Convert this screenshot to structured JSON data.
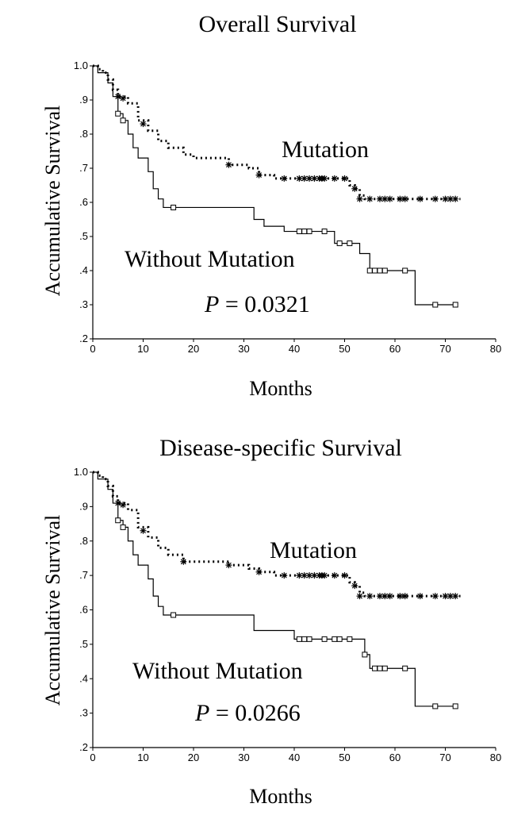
{
  "chart_data": [
    {
      "type": "line",
      "title": "Overall Survival",
      "xlabel": "Months",
      "ylabel": "Accumulative Survival",
      "xlim": [
        0,
        80
      ],
      "ylim": [
        0.2,
        1.0
      ],
      "xticks": [
        "0",
        "10",
        "20",
        "30",
        "40",
        "50",
        "60",
        "70",
        "80"
      ],
      "yticks": [
        "1.0",
        ".9",
        ".8",
        ".7",
        ".6",
        ".5",
        ".4",
        ".3",
        ".2"
      ],
      "p_value_label": "P",
      "p_value_text": "= 0.0321",
      "series": [
        {
          "name": "Mutation",
          "style": "dotted",
          "marker": "star",
          "steps": [
            [
              0,
              1.0
            ],
            [
              1,
              0.99
            ],
            [
              2,
              0.98
            ],
            [
              3,
              0.96
            ],
            [
              4,
              0.93
            ],
            [
              5,
              0.91
            ],
            [
              7,
              0.89
            ],
            [
              9,
              0.84
            ],
            [
              11,
              0.81
            ],
            [
              13,
              0.78
            ],
            [
              15,
              0.76
            ],
            [
              18,
              0.74
            ],
            [
              20,
              0.73
            ],
            [
              27,
              0.71
            ],
            [
              31,
              0.7
            ],
            [
              33,
              0.68
            ],
            [
              36,
              0.67
            ],
            [
              51,
              0.65
            ],
            [
              52,
              0.64
            ],
            [
              53,
              0.62
            ],
            [
              54,
              0.61
            ]
          ],
          "end": 73,
          "censored": [
            [
              5,
              0.91
            ],
            [
              6,
              0.905
            ],
            [
              10,
              0.83
            ],
            [
              27,
              0.71
            ],
            [
              33,
              0.68
            ],
            [
              38,
              0.67
            ],
            [
              41,
              0.67
            ],
            [
              42,
              0.67
            ],
            [
              43,
              0.67
            ],
            [
              44,
              0.67
            ],
            [
              45,
              0.67
            ],
            [
              45.5,
              0.67
            ],
            [
              46,
              0.67
            ],
            [
              48,
              0.67
            ],
            [
              50,
              0.67
            ],
            [
              52,
              0.64
            ],
            [
              53,
              0.61
            ],
            [
              55,
              0.61
            ],
            [
              57,
              0.61
            ],
            [
              58,
              0.61
            ],
            [
              59,
              0.61
            ],
            [
              61,
              0.61
            ],
            [
              62,
              0.61
            ],
            [
              65,
              0.61
            ],
            [
              68,
              0.61
            ],
            [
              70,
              0.61
            ],
            [
              71,
              0.61
            ],
            [
              72,
              0.61
            ]
          ]
        },
        {
          "name": "Without Mutation",
          "style": "solid",
          "marker": "square",
          "steps": [
            [
              0,
              1.0
            ],
            [
              1,
              0.98
            ],
            [
              3,
              0.95
            ],
            [
              4,
              0.91
            ],
            [
              5,
              0.86
            ],
            [
              6,
              0.84
            ],
            [
              7,
              0.8
            ],
            [
              8,
              0.76
            ],
            [
              9,
              0.73
            ],
            [
              11,
              0.69
            ],
            [
              12,
              0.64
            ],
            [
              13,
              0.61
            ],
            [
              14,
              0.585
            ],
            [
              32,
              0.55
            ],
            [
              34,
              0.53
            ],
            [
              38,
              0.515
            ],
            [
              48,
              0.48
            ],
            [
              53,
              0.45
            ],
            [
              55,
              0.4
            ],
            [
              64,
              0.3
            ]
          ],
          "end": 72,
          "censored": [
            [
              5,
              0.86
            ],
            [
              6,
              0.84
            ],
            [
              16,
              0.585
            ],
            [
              41,
              0.515
            ],
            [
              42,
              0.515
            ],
            [
              43,
              0.515
            ],
            [
              46,
              0.515
            ],
            [
              49,
              0.48
            ],
            [
              51,
              0.48
            ],
            [
              55,
              0.4
            ],
            [
              56,
              0.4
            ],
            [
              57,
              0.4
            ],
            [
              58,
              0.4
            ],
            [
              62,
              0.4
            ],
            [
              68,
              0.3
            ],
            [
              72,
              0.3
            ]
          ]
        }
      ]
    },
    {
      "type": "line",
      "title": "Disease-specific Survival",
      "xlabel": "Months",
      "ylabel": "Accumulative Survival",
      "xlim": [
        0,
        80
      ],
      "ylim": [
        0.2,
        1.0
      ],
      "xticks": [
        "0",
        "10",
        "20",
        "30",
        "40",
        "50",
        "60",
        "70",
        "80"
      ],
      "yticks": [
        "1.0",
        ".9",
        ".8",
        ".7",
        ".6",
        ".5",
        ".4",
        ".3",
        ".2"
      ],
      "p_value_label": "P",
      "p_value_text": "= 0.0266",
      "series": [
        {
          "name": "Mutation",
          "style": "dotted",
          "marker": "star",
          "steps": [
            [
              0,
              1.0
            ],
            [
              1,
              0.99
            ],
            [
              2,
              0.98
            ],
            [
              3,
              0.96
            ],
            [
              4,
              0.93
            ],
            [
              5,
              0.91
            ],
            [
              7,
              0.89
            ],
            [
              9,
              0.84
            ],
            [
              11,
              0.81
            ],
            [
              13,
              0.78
            ],
            [
              15,
              0.76
            ],
            [
              18,
              0.74
            ],
            [
              20,
              0.74
            ],
            [
              27,
              0.73
            ],
            [
              31,
              0.72
            ],
            [
              33,
              0.71
            ],
            [
              36,
              0.7
            ],
            [
              51,
              0.68
            ],
            [
              52,
              0.67
            ],
            [
              53,
              0.65
            ],
            [
              54,
              0.64
            ]
          ],
          "end": 73,
          "censored": [
            [
              5,
              0.91
            ],
            [
              6,
              0.905
            ],
            [
              10,
              0.83
            ],
            [
              18,
              0.74
            ],
            [
              27,
              0.73
            ],
            [
              33,
              0.71
            ],
            [
              38,
              0.7
            ],
            [
              41,
              0.7
            ],
            [
              42,
              0.7
            ],
            [
              43,
              0.7
            ],
            [
              44,
              0.7
            ],
            [
              45,
              0.7
            ],
            [
              45.5,
              0.7
            ],
            [
              46,
              0.7
            ],
            [
              48,
              0.7
            ],
            [
              50,
              0.7
            ],
            [
              52,
              0.67
            ],
            [
              53,
              0.64
            ],
            [
              55,
              0.64
            ],
            [
              57,
              0.64
            ],
            [
              58,
              0.64
            ],
            [
              59,
              0.64
            ],
            [
              61,
              0.64
            ],
            [
              62,
              0.64
            ],
            [
              65,
              0.64
            ],
            [
              68,
              0.64
            ],
            [
              70,
              0.64
            ],
            [
              71,
              0.64
            ],
            [
              72,
              0.64
            ]
          ]
        },
        {
          "name": "Without Mutation",
          "style": "solid",
          "marker": "square",
          "steps": [
            [
              0,
              1.0
            ],
            [
              1,
              0.98
            ],
            [
              3,
              0.95
            ],
            [
              4,
              0.91
            ],
            [
              5,
              0.86
            ],
            [
              6,
              0.84
            ],
            [
              7,
              0.8
            ],
            [
              8,
              0.76
            ],
            [
              9,
              0.73
            ],
            [
              11,
              0.69
            ],
            [
              12,
              0.64
            ],
            [
              13,
              0.61
            ],
            [
              14,
              0.585
            ],
            [
              32,
              0.54
            ],
            [
              40,
              0.515
            ],
            [
              54,
              0.47
            ],
            [
              55,
              0.43
            ],
            [
              64,
              0.32
            ]
          ],
          "end": 72,
          "censored": [
            [
              5,
              0.86
            ],
            [
              6,
              0.84
            ],
            [
              16,
              0.585
            ],
            [
              41,
              0.515
            ],
            [
              42,
              0.515
            ],
            [
              43,
              0.515
            ],
            [
              46,
              0.515
            ],
            [
              48,
              0.515
            ],
            [
              49,
              0.515
            ],
            [
              51,
              0.515
            ],
            [
              54,
              0.47
            ],
            [
              56,
              0.43
            ],
            [
              57,
              0.43
            ],
            [
              58,
              0.43
            ],
            [
              62,
              0.43
            ],
            [
              68,
              0.32
            ],
            [
              72,
              0.32
            ]
          ]
        }
      ]
    }
  ]
}
